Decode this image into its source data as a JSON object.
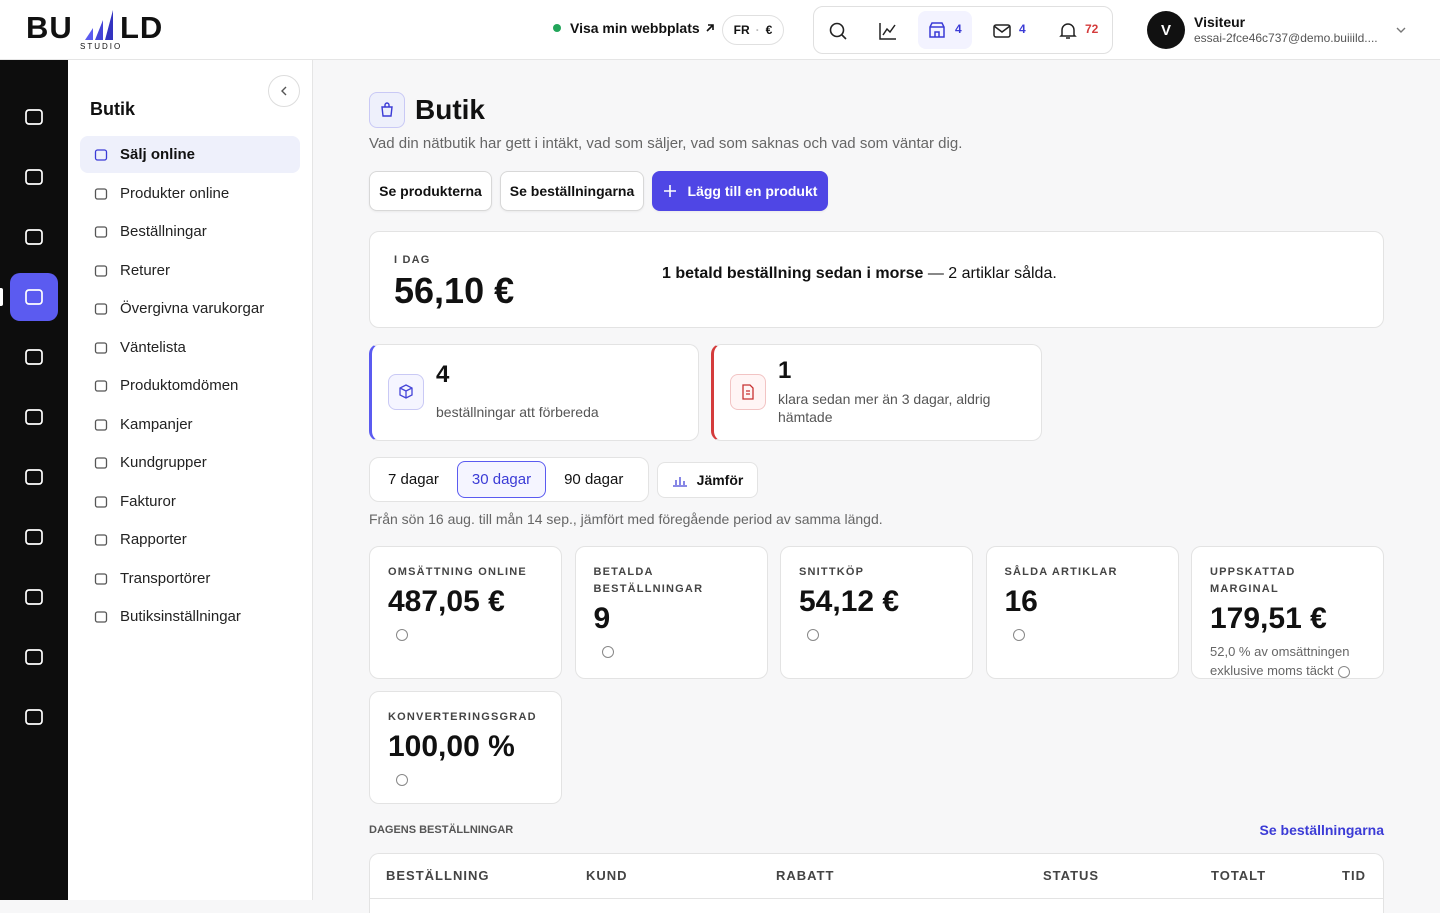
{
  "header": {
    "logo": {
      "left": "BU",
      "right": "LD",
      "sub": "STUDIO"
    },
    "site_link": "Visa min webbplats",
    "language": "FR",
    "currency": "€",
    "badges": {
      "shop": "4",
      "mail": "4",
      "notifications": "72"
    },
    "user": {
      "initial": "V",
      "name": "Visiteur",
      "email": "essai-2fce46c737@demo.buiiild...."
    }
  },
  "sidebar": {
    "title": "Butik",
    "items": [
      "Sälj online",
      "Produkter online",
      "Beställningar",
      "Returer",
      "Övergivna varukorgar",
      "Väntelista",
      "Produktomdömen",
      "Kampanjer",
      "Kundgrupper",
      "Fakturor",
      "Rapporter",
      "Transportörer",
      "Butiksinställningar"
    ]
  },
  "main": {
    "title": "Butik",
    "subtitle": "Vad din nätbutik har gett i intäkt, vad som säljer, vad som saknas och vad som väntar dig.",
    "buttons": [
      "Se produkterna",
      "Se beställningarna",
      "Lägg till en produkt"
    ],
    "today": {
      "label": "I DAG",
      "value": "56,10 €",
      "summary_bold": "1 betald beställning sedan i morse",
      "summary_rest": " — 2 artiklar sålda."
    },
    "alerts": [
      {
        "value": "4",
        "text": "beställningar att förbereda"
      },
      {
        "value": "1",
        "text": "klara sedan mer än 3 dagar, aldrig hämtade"
      }
    ],
    "periods": [
      "7 dagar",
      "30 dagar",
      "90 dagar"
    ],
    "compare": "Jämför",
    "period_text": "Från sön 16 aug. till mån 14 sep., jämfört med föregående period av samma längd.",
    "kpis": [
      {
        "label": "OMSÄTTNING ONLINE",
        "value": "487,05 €"
      },
      {
        "label": "BETALDA BESTÄLLNINGAR",
        "value": "9"
      },
      {
        "label": "SNITTKÖP",
        "value": "54,12 €"
      },
      {
        "label": "SÅLDA ARTIKLAR",
        "value": "16"
      },
      {
        "label": "UPPSKATTAD MARGINAL",
        "value": "179,51 €",
        "note": "52,0 % av omsättningen exklusive moms täckt"
      },
      {
        "label": "KONVERTERINGSGRAD",
        "value": "100,00 %"
      }
    ],
    "orders": {
      "title": "DAGENS BESTÄLLNINGAR",
      "link": "Se beställningarna",
      "columns": [
        "BESTÄLLNING",
        "KUND",
        "RABATT",
        "STATUS",
        "TOTALT",
        "TID"
      ]
    }
  }
}
